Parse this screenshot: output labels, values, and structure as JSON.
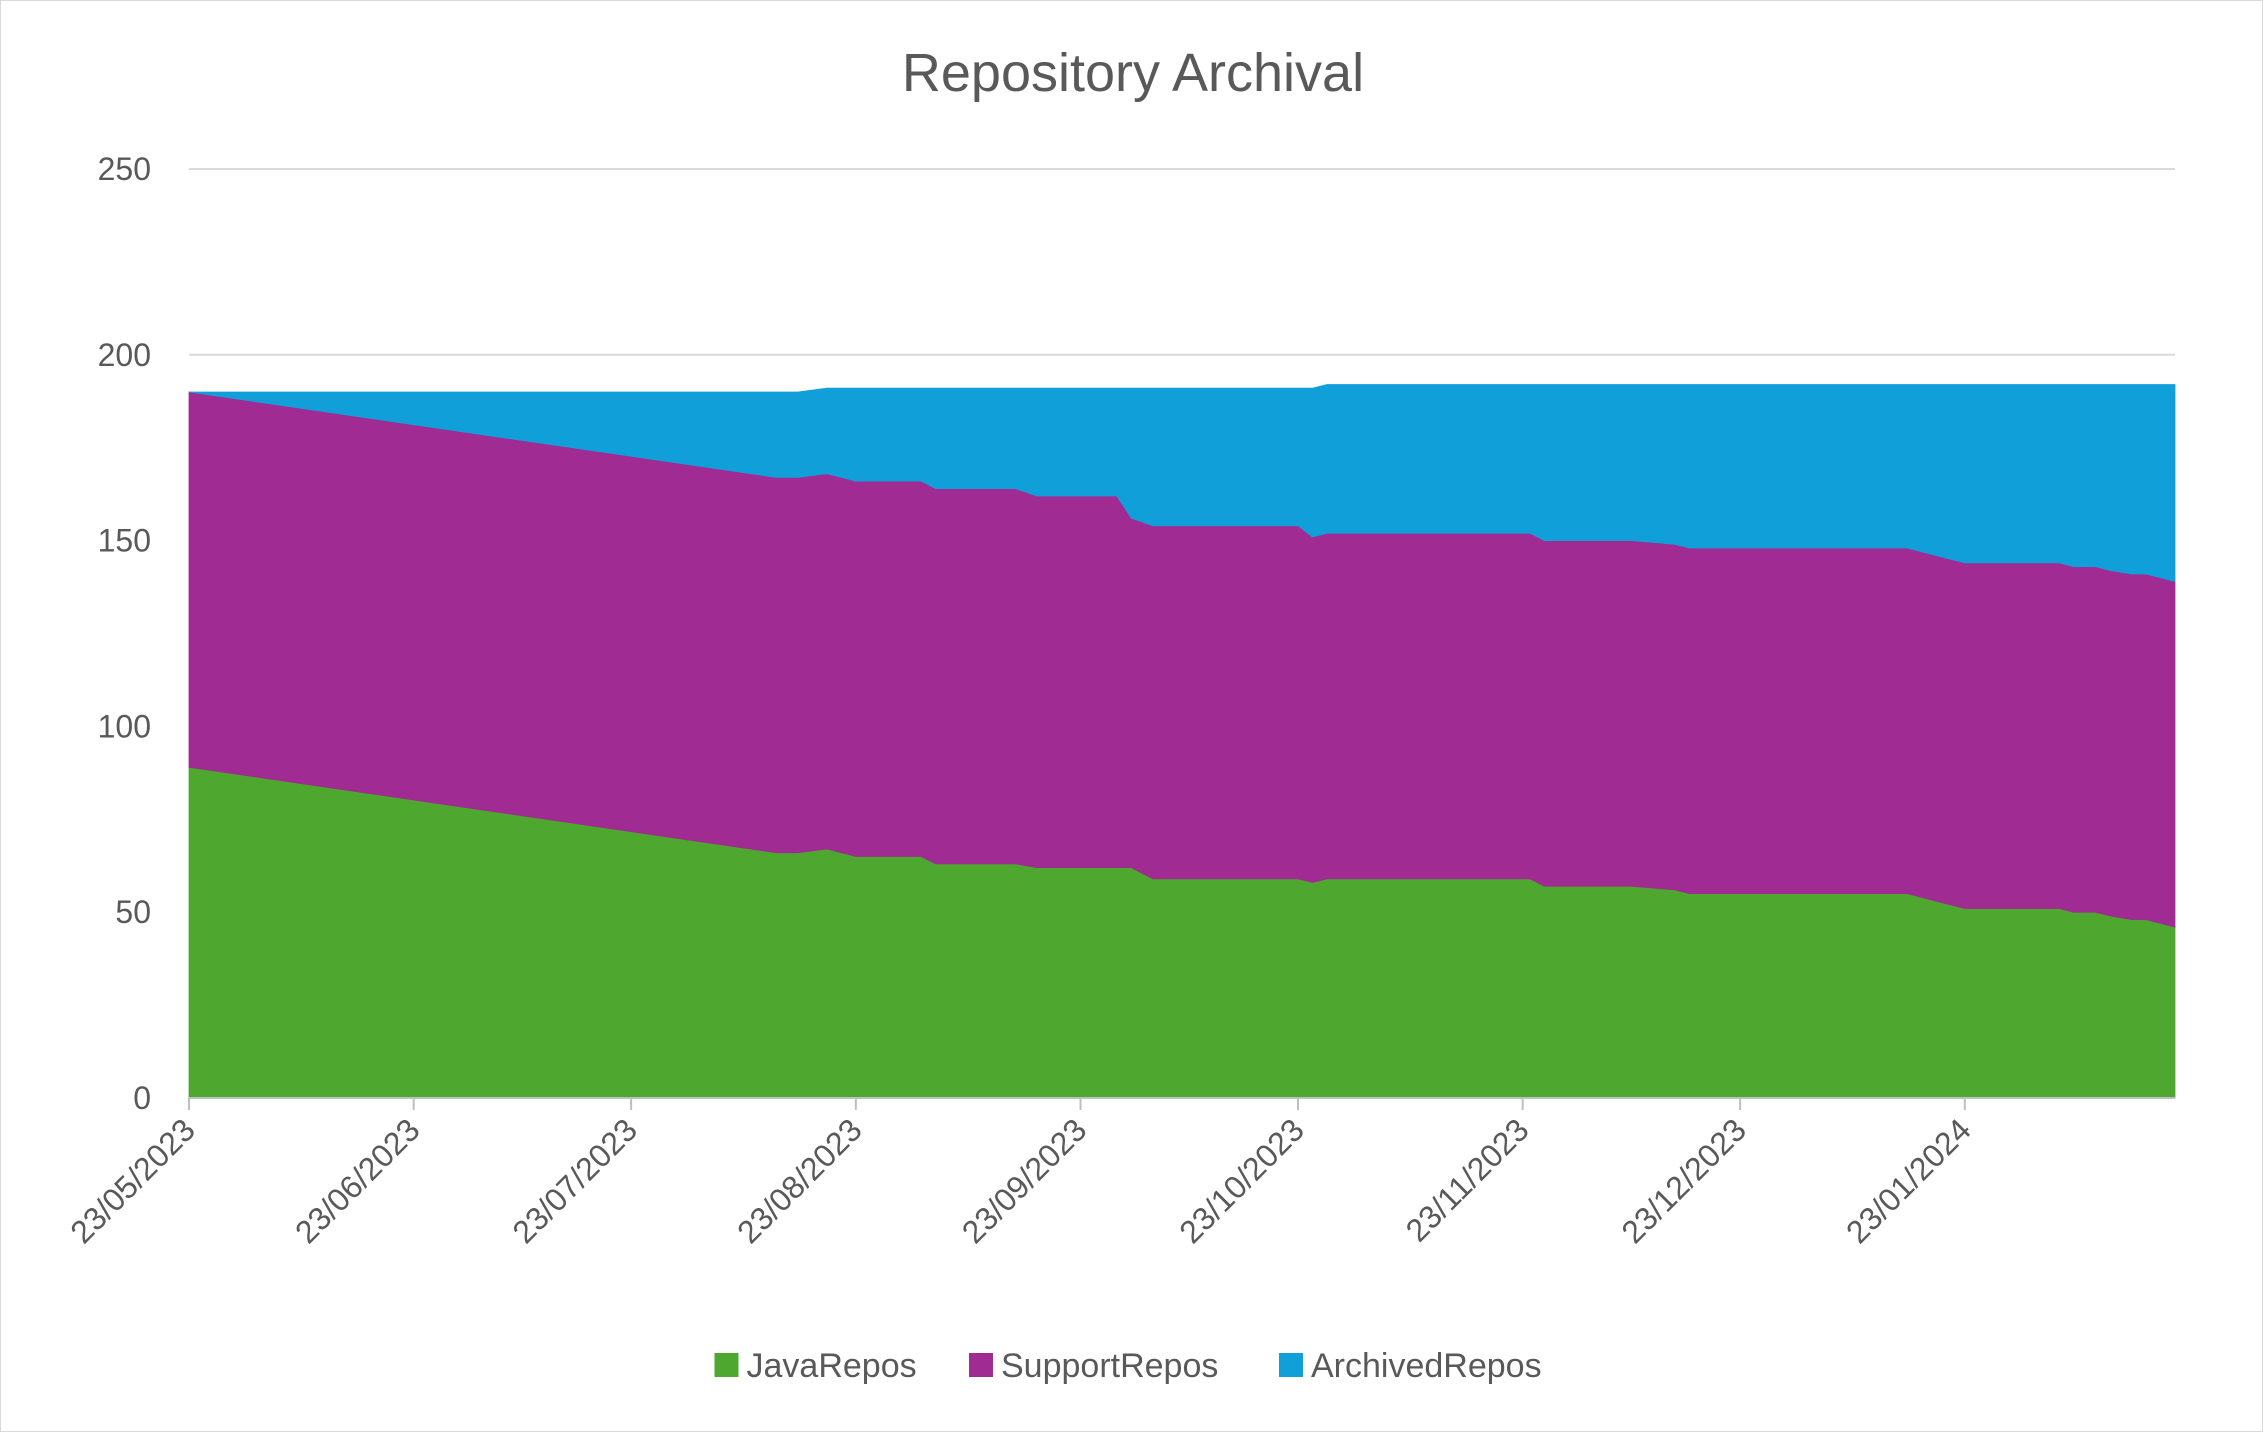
{
  "chart_data": {
    "type": "area",
    "stacked": true,
    "title": "Repository Archival",
    "xlabel": "",
    "ylabel": "",
    "ylim": [
      0,
      250
    ],
    "yticks": [
      0,
      50,
      100,
      150,
      200,
      250
    ],
    "xlim": [
      "2023-05-23",
      "2024-02-21"
    ],
    "xtick_dates": [
      "2023-05-23",
      "2023-06-23",
      "2023-07-23",
      "2023-08-23",
      "2023-09-23",
      "2023-10-23",
      "2023-11-23",
      "2023-12-23",
      "2024-01-23"
    ],
    "xtick_labels": [
      "23/05/2023",
      "23/06/2023",
      "23/07/2023",
      "23/08/2023",
      "23/09/2023",
      "23/10/2023",
      "23/11/2023",
      "23/12/2023",
      "23/01/2024"
    ],
    "grid": true,
    "legend_position": "bottom",
    "x": [
      "2023-05-23",
      "2023-08-12",
      "2023-08-15",
      "2023-08-19",
      "2023-08-21",
      "2023-08-23",
      "2023-09-01",
      "2023-09-03",
      "2023-09-14",
      "2023-09-17",
      "2023-09-28",
      "2023-09-30",
      "2023-10-03",
      "2023-10-06",
      "2023-10-12",
      "2023-10-23",
      "2023-10-25",
      "2023-10-27",
      "2023-11-24",
      "2023-11-26",
      "2023-12-08",
      "2023-12-14",
      "2023-12-16",
      "2024-01-15",
      "2024-01-17",
      "2024-01-19",
      "2024-01-23",
      "2024-02-05",
      "2024-02-07",
      "2024-02-10",
      "2024-02-12",
      "2024-02-15",
      "2024-02-17",
      "2024-02-21"
    ],
    "series": [
      {
        "name": "JavaRepos",
        "color": "#4ea72e",
        "values": [
          89,
          66,
          66,
          67,
          66,
          65,
          65,
          63,
          63,
          62,
          62,
          62,
          59,
          59,
          59,
          59,
          58,
          59,
          59,
          57,
          57,
          56,
          55,
          55,
          54,
          53,
          51,
          51,
          50,
          50,
          49,
          48,
          48,
          46
        ]
      },
      {
        "name": "SupportRepos",
        "color": "#a02b93",
        "values": [
          101,
          101,
          101,
          101,
          101,
          101,
          101,
          101,
          101,
          100,
          100,
          94,
          95,
          95,
          95,
          95,
          93,
          93,
          93,
          93,
          93,
          93,
          93,
          93,
          93,
          93,
          93,
          93,
          93,
          93,
          93,
          93,
          93,
          93
        ]
      },
      {
        "name": "ArchivedRepos",
        "color": "#119fd9",
        "values": [
          0,
          23,
          23,
          23,
          24,
          25,
          25,
          27,
          27,
          29,
          29,
          35,
          37,
          37,
          37,
          37,
          40,
          40,
          40,
          42,
          42,
          43,
          44,
          44,
          45,
          46,
          48,
          48,
          49,
          49,
          50,
          51,
          51,
          53
        ]
      }
    ]
  }
}
